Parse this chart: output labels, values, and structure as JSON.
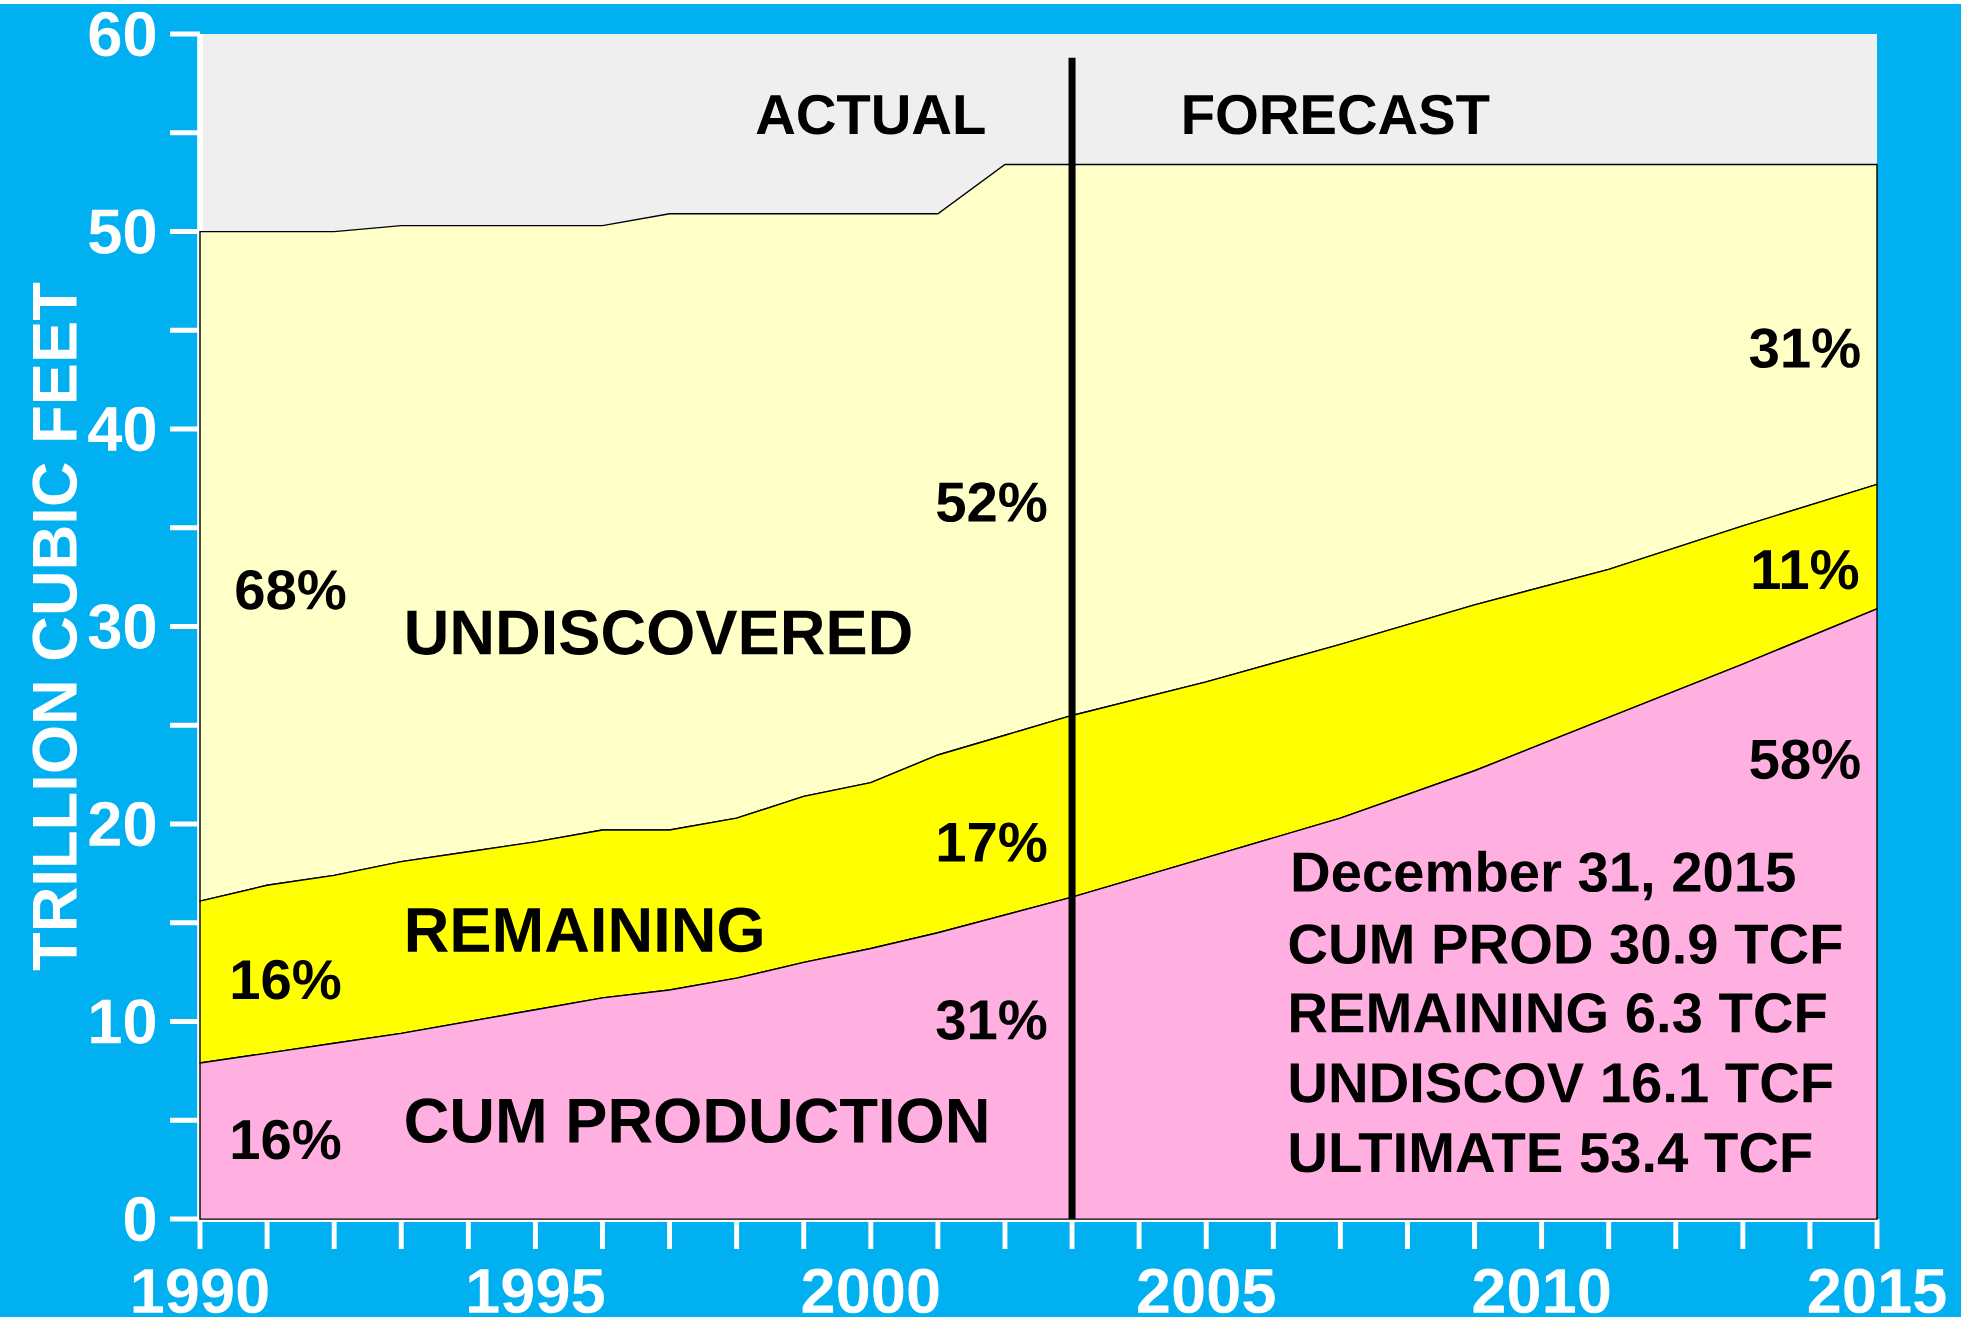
{
  "chart_data": {
    "type": "area",
    "stacked": true,
    "ylabel": "TRILLION CUBIC FEET",
    "x": [
      1990,
      1991,
      1992,
      1993,
      1994,
      1995,
      1996,
      1997,
      1998,
      1999,
      2000,
      2001,
      2002,
      2003,
      2005,
      2007,
      2009,
      2011,
      2013,
      2015
    ],
    "series": [
      {
        "name": "CUM PRODUCTION",
        "color": "#ffb0e0",
        "values": [
          7.9,
          8.4,
          8.9,
          9.4,
          10.0,
          10.6,
          11.2,
          11.6,
          12.2,
          13.0,
          13.7,
          14.5,
          15.4,
          16.3,
          18.3,
          20.3,
          22.7,
          25.4,
          28.1,
          30.9
        ]
      },
      {
        "name": "REMAINING",
        "color": "#ffff00",
        "values": [
          8.2,
          8.5,
          8.5,
          8.7,
          8.6,
          8.5,
          8.5,
          8.1,
          8.1,
          8.4,
          8.4,
          9.0,
          9.1,
          9.2,
          8.9,
          8.8,
          8.4,
          7.5,
          7.0,
          6.3
        ]
      },
      {
        "name": "UNDISCOVERED",
        "color": "#ffffc8",
        "values": [
          33.9,
          33.1,
          32.6,
          32.2,
          31.7,
          31.2,
          30.6,
          31.2,
          30.6,
          29.5,
          28.8,
          27.4,
          28.9,
          27.9,
          26.2,
          24.3,
          22.3,
          20.5,
          18.3,
          16.2
        ]
      }
    ],
    "xlim": [
      1990,
      2015
    ],
    "xticks": [
      1990,
      1995,
      2000,
      2005,
      2010,
      2015
    ],
    "ylim": [
      0,
      60
    ],
    "yticks": [
      0,
      10,
      20,
      30,
      40,
      50,
      60
    ],
    "ref_lines": [
      {
        "axis": "x",
        "value": 2003,
        "color": "#000000"
      }
    ],
    "annotations": [
      "ACTUAL",
      "FORECAST",
      "68%",
      "16%",
      "16%",
      "52%",
      "17%",
      "31%",
      "31%",
      "11%",
      "58%",
      "December 31, 2015",
      "CUM PROD   30.9 TCF",
      "REMAINING    6.3 TCF",
      "UNDISCOV    16.1 TCF",
      "ULTIMATE    53.4 TCF"
    ],
    "grid": false
  }
}
